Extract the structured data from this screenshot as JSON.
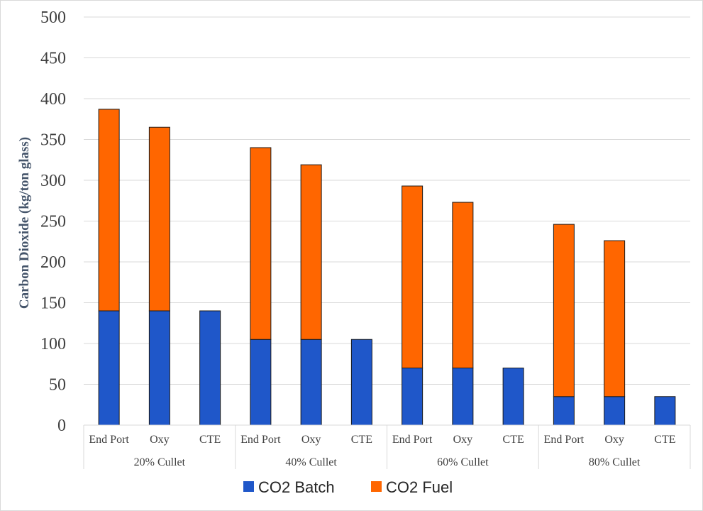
{
  "chart_data": {
    "type": "bar",
    "stacked": true,
    "ylabel": "Carbon Dioxide (kg/ton glass)",
    "ylim": [
      0,
      500
    ],
    "yticks": [
      0,
      50,
      100,
      150,
      200,
      250,
      300,
      350,
      400,
      450,
      500
    ],
    "grid": true,
    "legend_position": "bottom",
    "groups": [
      "20% Cullet",
      "40% Cullet",
      "60% Cullet",
      "80% Cullet"
    ],
    "categories": [
      "End Port",
      "Oxy",
      "CTE",
      "End Port",
      "Oxy",
      "CTE",
      "End Port",
      "Oxy",
      "CTE",
      "End Port",
      "Oxy",
      "CTE"
    ],
    "series": [
      {
        "name": "CO2 Batch",
        "color": "#1f57c9",
        "values": [
          140,
          140,
          140,
          105,
          105,
          105,
          70,
          70,
          70,
          35,
          35,
          35
        ]
      },
      {
        "name": "CO2 Fuel",
        "color": "#ff6600",
        "values": [
          247,
          225,
          0,
          235,
          214,
          0,
          223,
          203,
          0,
          211,
          191,
          0
        ]
      }
    ]
  }
}
